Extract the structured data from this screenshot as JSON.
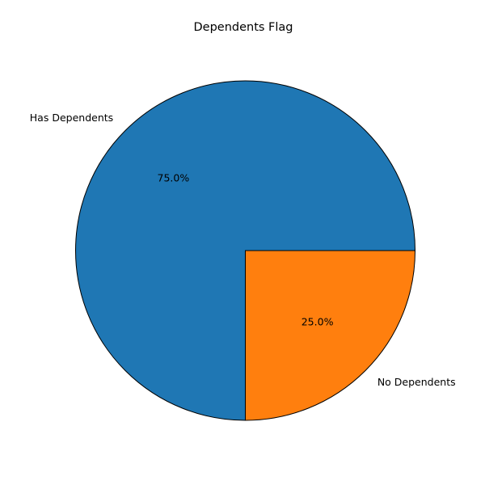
{
  "chart_data": {
    "type": "pie",
    "title": "Dependents Flag",
    "slices": [
      {
        "label": "Has Dependents",
        "value": 75.0,
        "pct_label": "75.0%",
        "color": "#1f77b4"
      },
      {
        "label": "No Dependents",
        "value": 25.0,
        "pct_label": "25.0%",
        "color": "#ff7f0e"
      }
    ],
    "edge_color": "#000000",
    "start_angle_deg": 0,
    "direction": "counterclockwise"
  }
}
